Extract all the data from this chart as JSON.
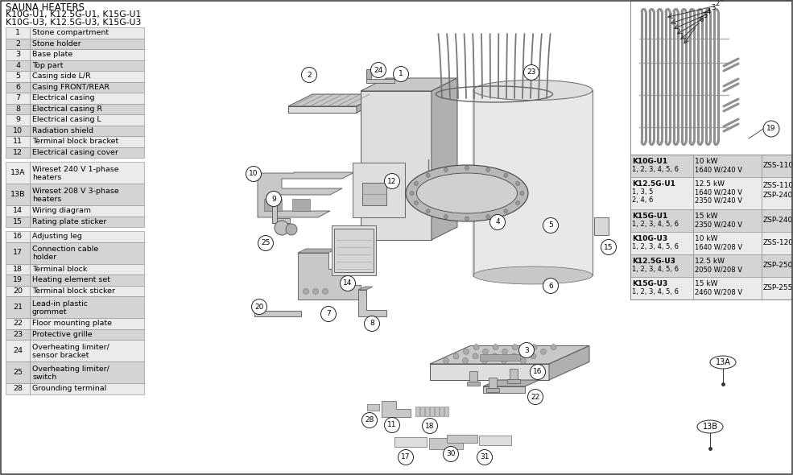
{
  "title_line1": "SAUNA HEATERS",
  "title_line2": "K10G-U1, K12.5G-U1, K15G-U1",
  "title_line3": "K10G-U3, K12.5G-U3, K15G-U3",
  "table_rows": [
    [
      "1",
      "Stone compartment",
      false
    ],
    [
      "2",
      "Stone holder",
      true
    ],
    [
      "3",
      "Base plate",
      false
    ],
    [
      "4",
      "Top part",
      true
    ],
    [
      "5",
      "Casing side L/R",
      false
    ],
    [
      "6",
      "Casing FRONT/REAR",
      true
    ],
    [
      "7",
      "Electrical casing",
      false
    ],
    [
      "8",
      "Electrical casing R",
      true
    ],
    [
      "9",
      "Electrical casing L",
      false
    ],
    [
      "10",
      "Radiation shield",
      true
    ],
    [
      "11",
      "Terminal block bracket",
      false
    ],
    [
      "12",
      "Electrical casing cover",
      true
    ],
    [
      "13A",
      "Wireset 240 V 1-phase\nheaters",
      false
    ],
    [
      "13B",
      "Wireset 208 V 3-phase\nheaters",
      true
    ],
    [
      "14",
      "Wiring diagram",
      false
    ],
    [
      "15",
      "Rating plate sticker",
      true
    ],
    [
      "16",
      "Adjusting leg",
      false
    ],
    [
      "17",
      "Connection cable\nholder",
      true
    ],
    [
      "18",
      "Terminal block",
      false
    ],
    [
      "19",
      "Heating element set",
      true
    ],
    [
      "20",
      "Terminal block sticker",
      false
    ],
    [
      "21",
      "Lead-in plastic\ngrommet",
      true
    ],
    [
      "22",
      "Floor mounting plate",
      false
    ],
    [
      "23",
      "Protective grille",
      true
    ],
    [
      "24",
      "Overheating limiter/\nsensor bracket",
      false
    ],
    [
      "25",
      "Overheating limiter/\nswitch",
      true
    ],
    [
      "28",
      "Grounding terminal",
      false
    ]
  ],
  "spec_rows": [
    {
      "model": "K10G-U1",
      "elem": "1, 2, 3, 4, 5, 6",
      "elem2": "",
      "kw": "10 kW",
      "w1": "1640 W/240 V",
      "w2": "",
      "z1": "ZSS-110",
      "z2": "",
      "shade": true
    },
    {
      "model": "K12.5G-U1",
      "elem": "1, 3, 5",
      "elem2": "2, 4, 6",
      "kw": "12.5 kW",
      "w1": "1640 W/240 V",
      "w2": "2350 W/240 V",
      "z1": "ZSS-110",
      "z2": "ZSP-240",
      "shade": false
    },
    {
      "model": "K15G-U1",
      "elem": "1, 2, 3, 4, 5, 6",
      "elem2": "",
      "kw": "15 kW",
      "w1": "2350 W/240 V",
      "w2": "",
      "z1": "ZSP-240",
      "z2": "",
      "shade": true
    },
    {
      "model": "K10G-U3",
      "elem": "1, 2, 3, 4, 5, 6",
      "elem2": "",
      "kw": "10 kW",
      "w1": "1640 W/208 V",
      "w2": "",
      "z1": "ZSS-120",
      "z2": "",
      "shade": false
    },
    {
      "model": "K12.5G-U3",
      "elem": "1, 2, 3, 4, 5, 6",
      "elem2": "",
      "kw": "12.5 kW",
      "w1": "2050 W/208 V",
      "w2": "",
      "z1": "ZSP-250",
      "z2": "",
      "shade": true
    },
    {
      "model": "K15G-U3",
      "elem": "1, 2, 3, 4, 5, 6",
      "elem2": "",
      "kw": "15 kW",
      "w1": "2460 W/208 V",
      "w2": "",
      "z1": "ZSP-255",
      "z2": "",
      "shade": false
    }
  ],
  "bg_color": "#ffffff",
  "table_shade_color": "#d4d4d4",
  "table_light_color": "#ebebeb",
  "border_color": "#888888",
  "text_color": "#000000",
  "spec_shade": "#d4d4d4",
  "spec_light": "#ebebeb"
}
